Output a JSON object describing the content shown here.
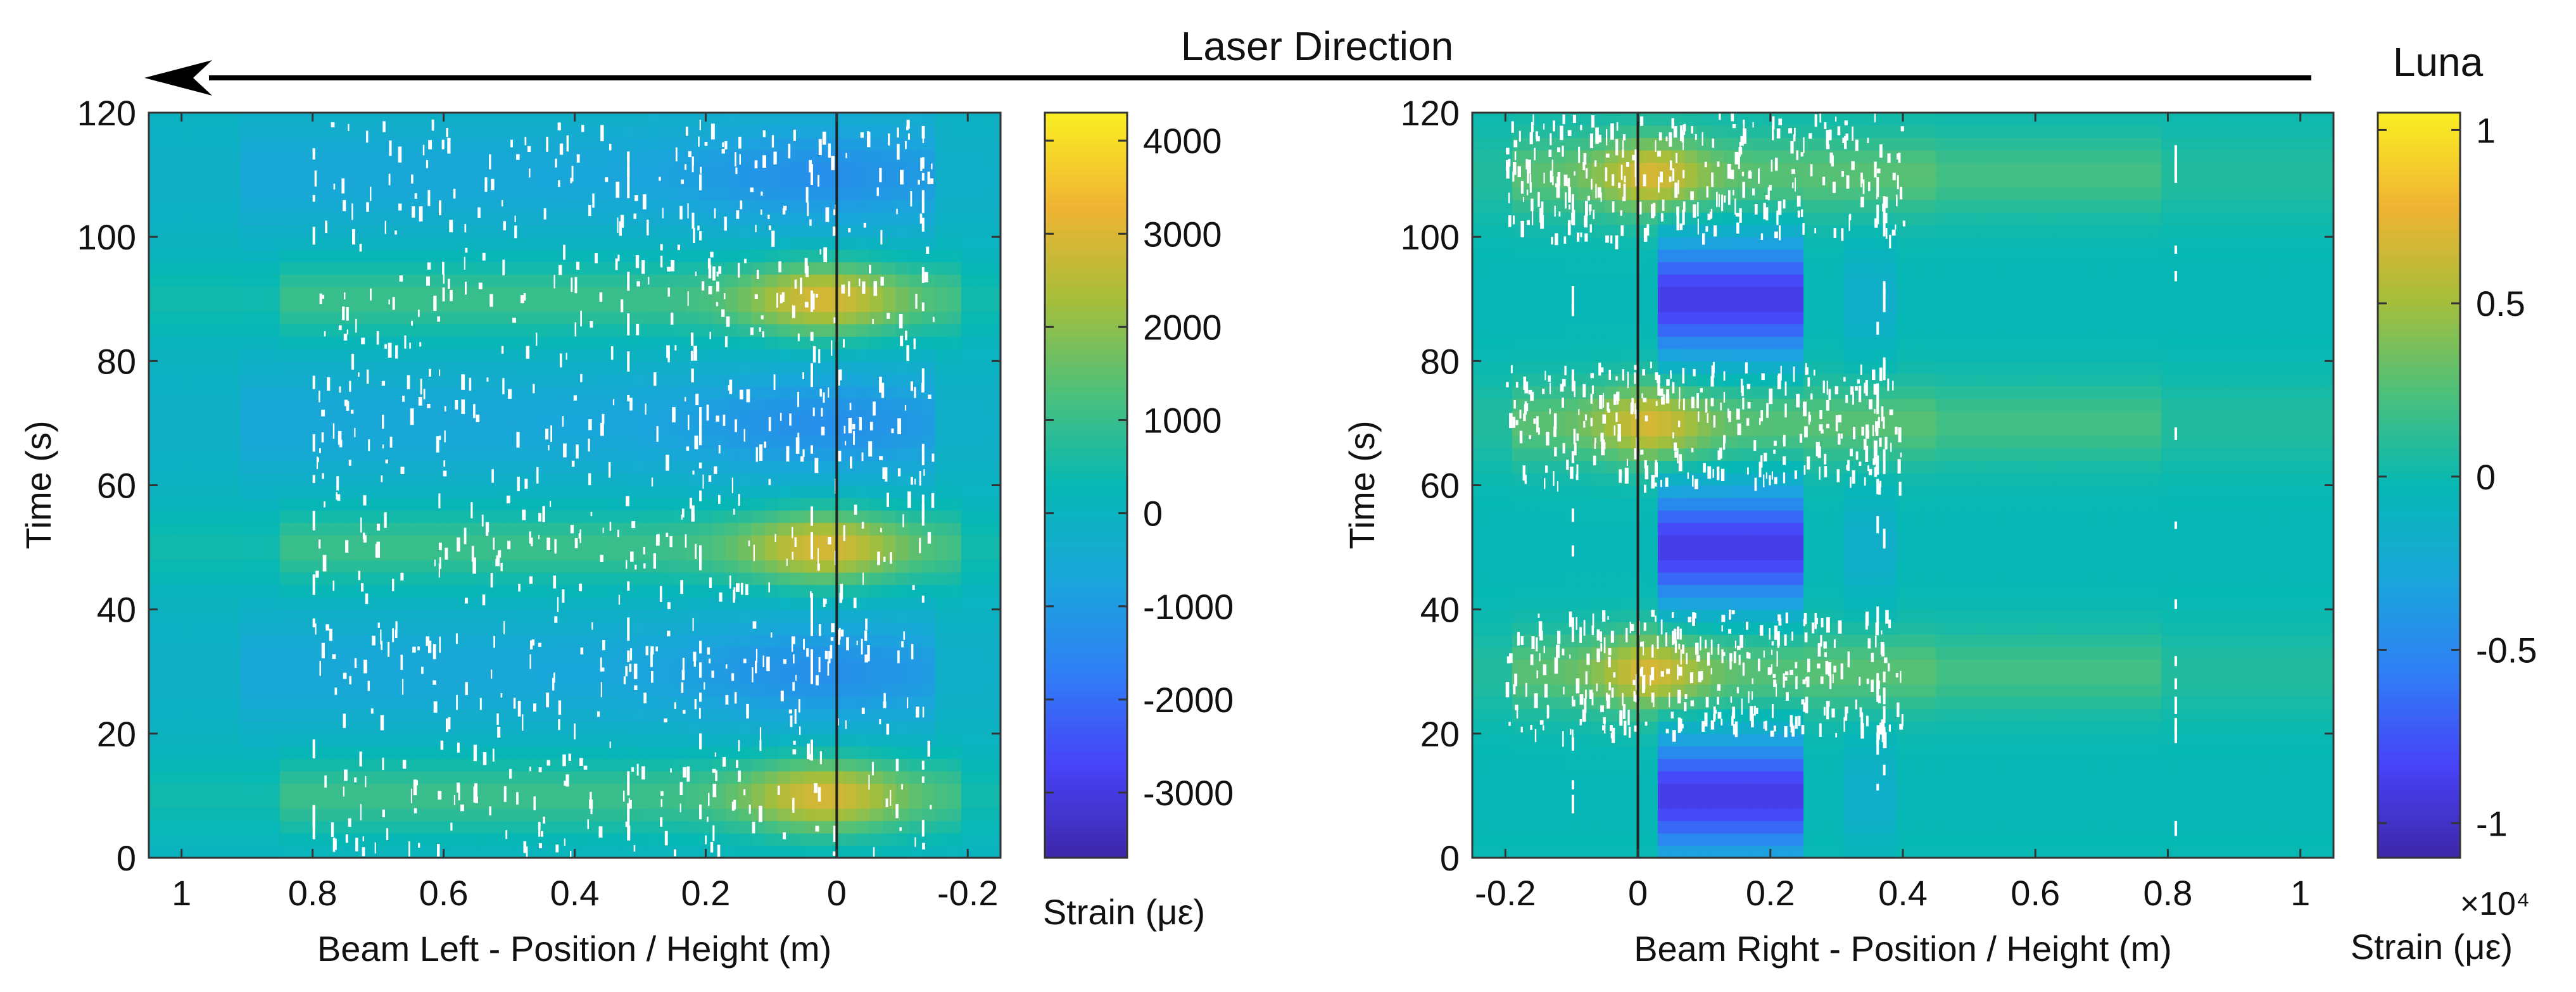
{
  "header": {
    "laser_direction": "Laser Direction",
    "source_label": "Luna"
  },
  "colors": {
    "background": "#ffffff",
    "parula": [
      "#3e26a8",
      "#4743f8",
      "#2f7ff5",
      "#1aa6db",
      "#06b8b4",
      "#4dc07b",
      "#a7be3a",
      "#f0b333",
      "#faef22"
    ]
  },
  "chart_data": [
    {
      "type": "heatmap",
      "name": "beam-left",
      "xlabel": "Beam Left - Position / Height (m)",
      "ylabel": "Time (s)",
      "xlim": [
        1.05,
        -0.25
      ],
      "ylim": [
        0,
        120
      ],
      "x_ticks": [
        1,
        0.8,
        0.6,
        0.4,
        0.2,
        0,
        -0.2
      ],
      "x_tick_labels": [
        "1",
        "0.8",
        "0.6",
        "0.4",
        "0.2",
        "0",
        "-0.2"
      ],
      "y_ticks": [
        0,
        20,
        40,
        60,
        80,
        100,
        120
      ],
      "y_tick_labels": [
        "0",
        "20",
        "40",
        "60",
        "80",
        "100",
        "120"
      ],
      "colorbar": {
        "label": "Strain (με)",
        "range": [
          -3700,
          4300
        ],
        "ticks": [
          4000,
          3000,
          2000,
          1000,
          0,
          -1000,
          -2000,
          -3000
        ],
        "tick_labels": [
          "4000",
          "3000",
          "2000",
          "1000",
          "0",
          "-1000",
          "-2000",
          "-3000"
        ],
        "exponent_label": ""
      },
      "vertical_marker_at": 0,
      "description_points": {
        "high_strain_bands_time": [
          10,
          50,
          90
        ],
        "low_strain_bands_time": [
          30,
          70,
          110
        ],
        "peak_position": 0,
        "peak_value": 3000,
        "trough_value": -1600
      }
    },
    {
      "type": "heatmap",
      "name": "beam-right",
      "xlabel": "Beam Right - Position / Height (m)",
      "ylabel": "Time (s)",
      "xlim": [
        -0.25,
        1.05
      ],
      "ylim": [
        0,
        120
      ],
      "x_ticks": [
        -0.2,
        0,
        0.2,
        0.4,
        0.6,
        0.8,
        1
      ],
      "x_tick_labels": [
        "-0.2",
        "0",
        "0.2",
        "0.4",
        "0.6",
        "0.8",
        "1"
      ],
      "y_ticks": [
        0,
        20,
        40,
        60,
        80,
        100,
        120
      ],
      "y_tick_labels": [
        "0",
        "20",
        "40",
        "60",
        "80",
        "100",
        "120"
      ],
      "colorbar": {
        "label": "Strain (με)",
        "range": [
          -11000,
          10500
        ],
        "ticks": [
          10000,
          5000,
          0,
          -5000,
          -10000
        ],
        "tick_labels": [
          "1",
          "0.5",
          "0",
          "-0.5",
          "-1"
        ],
        "exponent_label": "×10⁴"
      },
      "vertical_marker_at": 0,
      "description_points": {
        "high_strain_bands_time": [
          30,
          70,
          110
        ],
        "low_strain_bands_time": [
          10,
          50,
          90
        ],
        "peak_position": 0,
        "peak_value": 7000,
        "trough_value": -9000
      }
    }
  ]
}
